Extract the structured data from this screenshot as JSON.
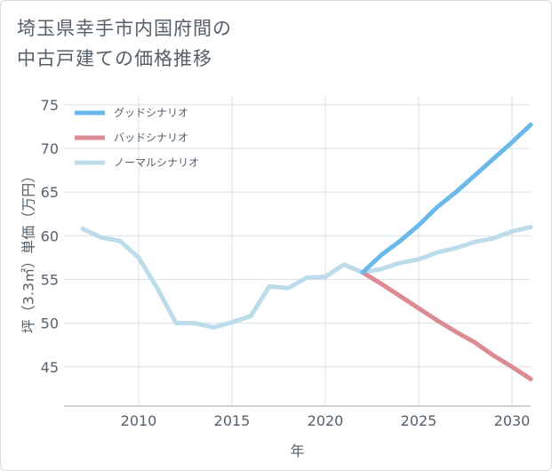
{
  "title_lines": [
    "埼玉県幸手市内国府間の",
    "中古戸建ての価格推移"
  ],
  "chart_data": {
    "type": "line",
    "title": "埼玉県幸手市内国府間の中古戸建ての価格推移",
    "xlabel": "年",
    "ylabel": "坪（3.3㎡）単価（万円）",
    "xlim": [
      2006,
      2031
    ],
    "ylim": [
      40.5,
      76
    ],
    "xticks": [
      2010,
      2015,
      2020,
      2025,
      2030
    ],
    "yticks": [
      45,
      50,
      55,
      60,
      65,
      70,
      75
    ],
    "grid": true,
    "legend_position": "top-left",
    "series": [
      {
        "name": "グッドシナリオ",
        "color": "#6bb8ea",
        "x": [
          2022,
          2023,
          2024,
          2025,
          2026,
          2027,
          2028,
          2029,
          2030,
          2031
        ],
        "y": [
          55.8,
          57.8,
          59.4,
          61.2,
          63.3,
          65.0,
          66.9,
          68.8,
          70.7,
          72.7
        ]
      },
      {
        "name": "バッドシナリオ",
        "color": "#dc8a94",
        "x": [
          2022,
          2023,
          2024,
          2025,
          2026,
          2027,
          2028,
          2029,
          2030,
          2031
        ],
        "y": [
          55.8,
          54.5,
          53.1,
          51.7,
          50.3,
          49.0,
          47.8,
          46.3,
          45.0,
          43.6
        ]
      },
      {
        "name": "ノーマルシナリオ",
        "color": "#bcdcea",
        "x": [
          2007,
          2008,
          2009,
          2010,
          2011,
          2012,
          2013,
          2014,
          2015,
          2016,
          2017,
          2018,
          2019,
          2020,
          2021,
          2022,
          2023,
          2024,
          2025,
          2026,
          2027,
          2028,
          2029,
          2030,
          2031
        ],
        "y": [
          60.8,
          59.8,
          59.4,
          57.5,
          54.0,
          50.0,
          50.0,
          49.5,
          50.1,
          50.8,
          54.2,
          54.0,
          55.2,
          55.3,
          56.7,
          55.8,
          56.2,
          56.9,
          57.3,
          58.1,
          58.6,
          59.3,
          59.7,
          60.5,
          61.0
        ]
      }
    ]
  }
}
